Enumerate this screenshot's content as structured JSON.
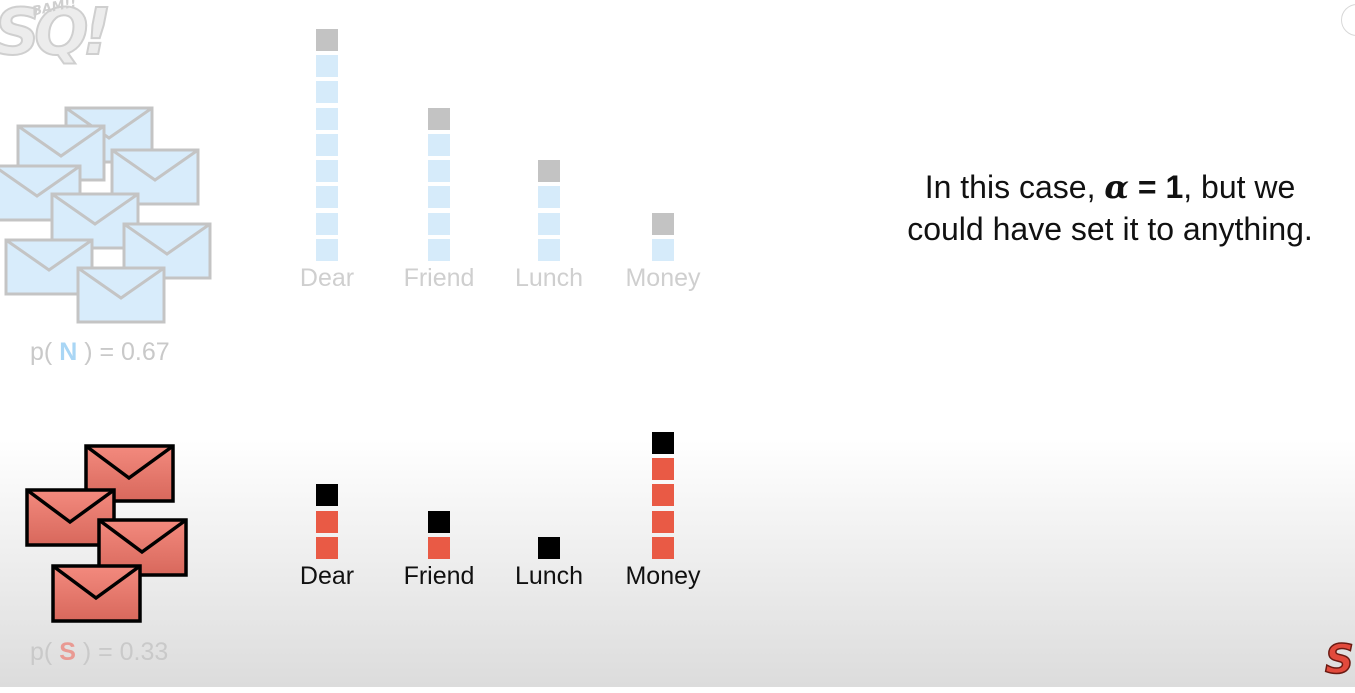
{
  "logo": {
    "main": "SQ!",
    "burst": "BAM!!"
  },
  "normal": {
    "probability": {
      "prefix": "p(",
      "letter": "N",
      "suffix": ") = 0.67"
    },
    "words": [
      "Dear",
      "Friend",
      "Lunch",
      "Money"
    ],
    "counts": [
      8,
      5,
      3,
      1
    ],
    "pseudocount": 1,
    "colors": {
      "count": "#d6ebfa",
      "pseudocount": "#c3c3c3",
      "label": "#cfcfcf",
      "letter": "#a9d6f5"
    }
  },
  "spam": {
    "probability": {
      "prefix": "p(",
      "letter": "S",
      "suffix": ") = 0.33"
    },
    "words": [
      "Dear",
      "Friend",
      "Lunch",
      "Money"
    ],
    "counts": [
      2,
      1,
      0,
      4
    ],
    "pseudocount": 1,
    "colors": {
      "count": "#e95a45",
      "pseudocount": "#000000",
      "label": "#111111",
      "letter": "#e99a93"
    }
  },
  "caption": {
    "line1_pre": "In this case, ",
    "alpha": "α",
    "equals": " = 1",
    "line1_post": ", but we",
    "line2": "could have set it to anything."
  }
}
